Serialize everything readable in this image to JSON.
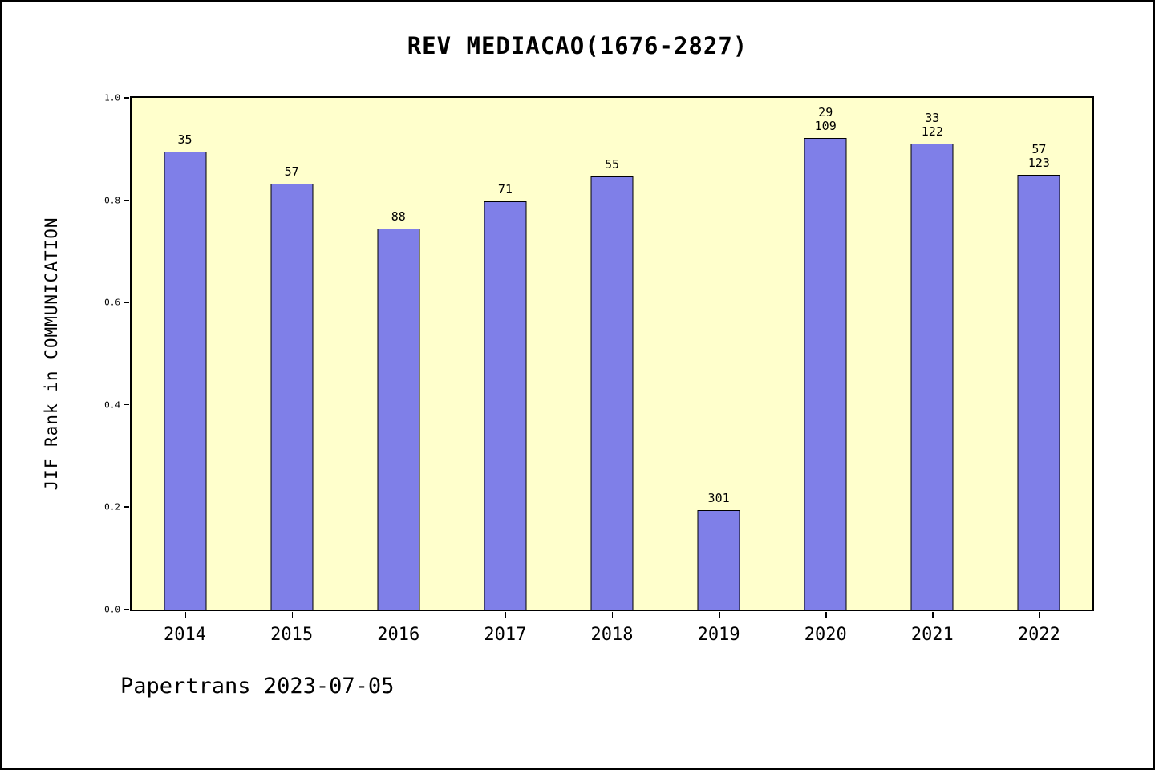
{
  "page": {
    "background": "#ffffff",
    "border_color": "#000000"
  },
  "chart_data": {
    "type": "bar",
    "title": "REV MEDIACAO(1676-2827)",
    "ylabel": "JIF Rank in COMMUNICATION",
    "xlabel": "",
    "categories": [
      "2014",
      "2015",
      "2016",
      "2017",
      "2018",
      "2019",
      "2020",
      "2021",
      "2022"
    ],
    "values": [
      0.895,
      0.833,
      0.745,
      0.798,
      0.847,
      0.195,
      0.922,
      0.911,
      0.85
    ],
    "bar_labels": [
      [
        "35"
      ],
      [
        "57"
      ],
      [
        "88"
      ],
      [
        "71"
      ],
      [
        "55"
      ],
      [
        "301"
      ],
      [
        "29",
        "109"
      ],
      [
        "33",
        "122"
      ],
      [
        "57",
        "123"
      ]
    ],
    "yticks": [
      1.0,
      0.8,
      0.6,
      0.4,
      0.2,
      0.0
    ],
    "ylim": [
      0,
      1
    ],
    "grid": false,
    "legend_position": "none",
    "colors": {
      "bar_fill": "#7F7FE8",
      "bar_edge": "#000000",
      "plot_background": "#FFFFCC",
      "frame": "#000000"
    }
  },
  "footer": {
    "text": "Papertrans 2023-07-05"
  }
}
